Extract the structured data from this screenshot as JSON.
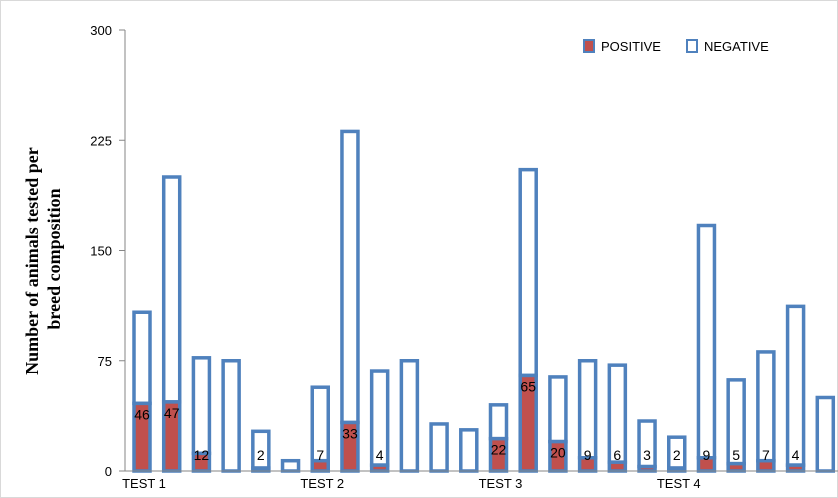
{
  "chart_data": {
    "type": "bar",
    "stacked": true,
    "ylabel": "Number of animals tested per breed composition",
    "ylim": [
      0,
      300
    ],
    "yticks": [
      0,
      75,
      150,
      225,
      300
    ],
    "grid": false,
    "legend_position": "top-right",
    "group_labels": [
      "TEST 1",
      "TEST 2",
      "TEST 3",
      "TEST 4"
    ],
    "group_label_bar_index": [
      0,
      6,
      12,
      18
    ],
    "series": [
      {
        "name": "POSITIVE",
        "color": "#c0504d",
        "outline": "#4f81bd",
        "values": [
          46,
          47,
          12,
          0,
          2,
          0,
          7,
          33,
          4,
          0,
          0,
          0,
          22,
          65,
          20,
          9,
          6,
          3,
          2,
          9,
          5,
          7,
          4,
          0
        ]
      },
      {
        "name": "NEGATIVE",
        "color": "#ffffff",
        "outline": "#4f81bd",
        "values": [
          62,
          153,
          65,
          75,
          25,
          7,
          50,
          198,
          64,
          75,
          32,
          28,
          23,
          140,
          44,
          66,
          66,
          31,
          21,
          158,
          57,
          74,
          108,
          50
        ]
      }
    ],
    "data_labels": [
      "46",
      "47",
      "12",
      "",
      "2",
      "",
      "7",
      "33",
      "4",
      "",
      "",
      "",
      "22",
      "65",
      "20",
      "9",
      "6",
      "3",
      "2",
      "9",
      "5",
      "7",
      "4",
      ""
    ]
  }
}
